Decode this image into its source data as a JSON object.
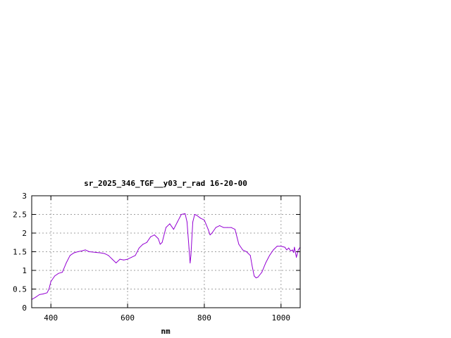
{
  "chart_data": {
    "type": "line",
    "title": "sr_2025_346_TGF__y03_r_rad 16-20-00",
    "xlabel": "nm",
    "ylabel": "",
    "xlim": [
      350,
      1050
    ],
    "ylim": [
      0,
      3
    ],
    "x_ticks": [
      400,
      600,
      800,
      1000
    ],
    "y_ticks": [
      0,
      0.5,
      1,
      1.5,
      2,
      2.5,
      3
    ],
    "y_tick_labels": [
      "0",
      "0.5",
      "1",
      "1.5",
      "2",
      "2.5",
      "3"
    ],
    "grid": true,
    "legend": "none",
    "line_color": "#9400d3",
    "series": [
      {
        "x": [
          350,
          360,
          370,
          380,
          390,
          395,
          400,
          410,
          420,
          430,
          440,
          450,
          460,
          470,
          480,
          490,
          500,
          510,
          520,
          530,
          540,
          550,
          560,
          570,
          580,
          590,
          600,
          610,
          620,
          630,
          640,
          650,
          660,
          670,
          680,
          685,
          690,
          700,
          710,
          720,
          730,
          740,
          750,
          755,
          760,
          763,
          765,
          770,
          775,
          780,
          790,
          800,
          810,
          815,
          820,
          830,
          840,
          850,
          860,
          870,
          880,
          890,
          900,
          910,
          920,
          925,
          930,
          935,
          940,
          950,
          960,
          970,
          980,
          990,
          1000,
          1010,
          1015,
          1020,
          1025,
          1030,
          1033,
          1035,
          1040,
          1045,
          1050
        ],
        "y": [
          0.22,
          0.28,
          0.35,
          0.37,
          0.4,
          0.5,
          0.7,
          0.85,
          0.92,
          0.95,
          1.2,
          1.4,
          1.47,
          1.5,
          1.52,
          1.55,
          1.5,
          1.49,
          1.48,
          1.47,
          1.45,
          1.4,
          1.3,
          1.2,
          1.3,
          1.28,
          1.3,
          1.35,
          1.4,
          1.6,
          1.7,
          1.75,
          1.9,
          1.95,
          1.85,
          1.7,
          1.75,
          2.15,
          2.25,
          2.1,
          2.3,
          2.5,
          2.52,
          2.3,
          1.6,
          1.2,
          1.4,
          2.3,
          2.5,
          2.48,
          2.4,
          2.35,
          2.1,
          1.95,
          2.0,
          2.15,
          2.2,
          2.15,
          2.15,
          2.15,
          2.1,
          1.7,
          1.55,
          1.5,
          1.4,
          1.1,
          0.85,
          0.8,
          0.82,
          0.95,
          1.2,
          1.4,
          1.55,
          1.65,
          1.65,
          1.62,
          1.55,
          1.6,
          1.52,
          1.55,
          1.48,
          1.62,
          1.35,
          1.55,
          1.62
        ]
      }
    ]
  }
}
